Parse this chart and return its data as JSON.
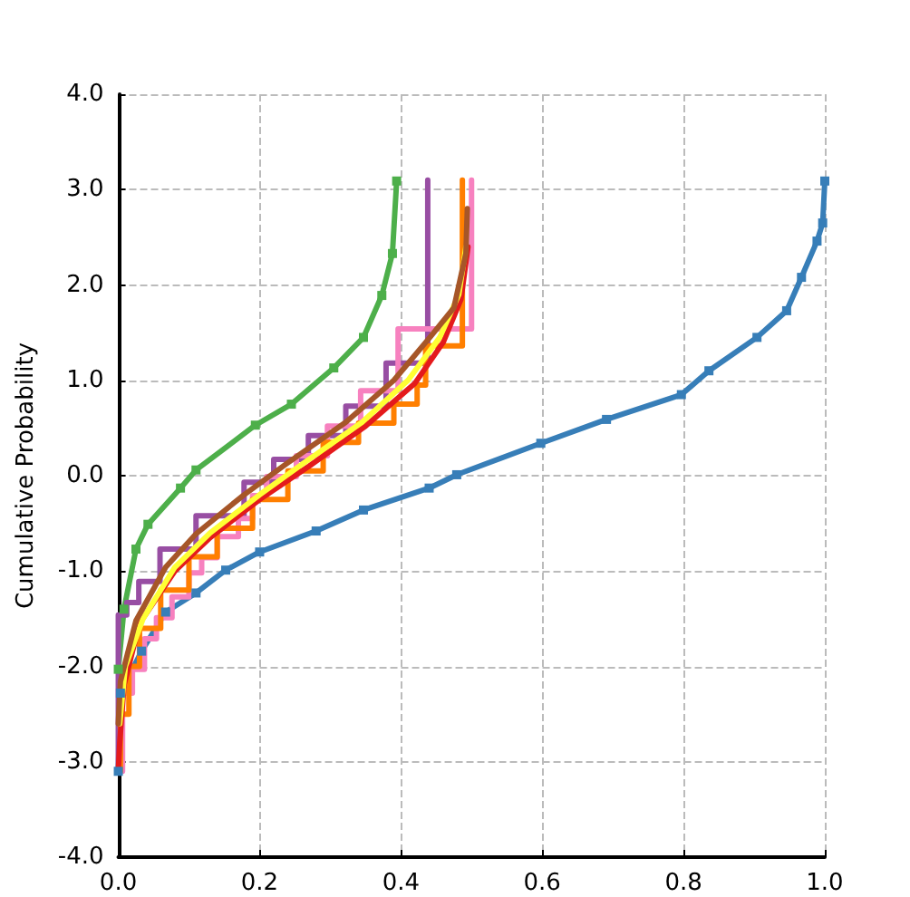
{
  "chart_data": {
    "type": "line",
    "ylabel": "Cumulative Probability",
    "xlim": [
      0,
      1
    ],
    "ylim": [
      -4,
      4
    ],
    "xticks": [
      {
        "value": 0,
        "label": "0.0"
      },
      {
        "value": 0.2,
        "label": "0.2"
      },
      {
        "value": 0.4,
        "label": "0.4"
      },
      {
        "value": 0.6,
        "label": "0.6"
      },
      {
        "value": 0.8,
        "label": "0.8"
      },
      {
        "value": 1,
        "label": "1.0"
      }
    ],
    "yticks": [
      {
        "value": -4,
        "label": "-4.0"
      },
      {
        "value": -3,
        "label": "-3.0"
      },
      {
        "value": -2,
        "label": "-2.0"
      },
      {
        "value": -1,
        "label": "-1.0"
      },
      {
        "value": 0,
        "label": "0.0"
      },
      {
        "value": 1,
        "label": "1.0"
      },
      {
        "value": 2,
        "label": "2.0"
      },
      {
        "value": 3,
        "label": "3.0"
      },
      {
        "value": 4,
        "label": "4.0"
      }
    ],
    "grid": true,
    "series": [
      {
        "marker": "square",
        "color": "#377eb8",
        "x": [
          0,
          0.003,
          0.033,
          0.067,
          0.11,
          0.152,
          0.2,
          0.28,
          0.347,
          0.44,
          0.479,
          0.598,
          0.691,
          0.797,
          0.836,
          0.904,
          0.946,
          0.967,
          0.989,
          0.997,
          1
        ],
        "values": [
          -3.1,
          -2.28,
          -1.84,
          -1.43,
          -1.23,
          -0.99,
          -0.8,
          -0.58,
          -0.36,
          -0.13,
          0.01,
          0.34,
          0.59,
          0.85,
          1.1,
          1.45,
          1.73,
          2.08,
          2.46,
          2.65,
          3.09
        ]
      },
      {
        "marker": "square",
        "color": "#4daf4a",
        "x": [
          0,
          0.008,
          0.025,
          0.042,
          0.088,
          0.11,
          0.194,
          0.245,
          0.305,
          0.347,
          0.373,
          0.388,
          0.394
        ],
        "values": [
          -2.03,
          -1.4,
          -0.77,
          -0.51,
          -0.13,
          0.06,
          0.53,
          0.75,
          1.13,
          1.45,
          1.89,
          2.33,
          3.09
        ]
      },
      {
        "type": "step",
        "color": "#984ea3",
        "x": [
          0,
          0,
          0.012,
          0.029,
          0.059,
          0.11,
          0.178,
          0.22,
          0.269,
          0.322,
          0.379,
          0.438
        ],
        "values": [
          -3.1,
          -1.46,
          -1.33,
          -1.11,
          -0.77,
          -0.42,
          -0.07,
          0.17,
          0.42,
          0.73,
          1.18,
          3.1
        ]
      },
      {
        "type": "step",
        "color": "#f781bf",
        "x": [
          0,
          0.006,
          0.02,
          0.037,
          0.054,
          0.076,
          0.1,
          0.118,
          0.14,
          0.17,
          0.19,
          0.21,
          0.252,
          0.296,
          0.343,
          0.396,
          0.5
        ],
        "values": [
          -3.1,
          -2.28,
          -2.03,
          -1.71,
          -1.49,
          -1.27,
          -1.02,
          -0.86,
          -0.64,
          -0.45,
          -0.21,
          -0.01,
          0.21,
          0.52,
          0.89,
          1.54,
          3.1
        ]
      },
      {
        "type": "step",
        "color": "#ff7f00",
        "x": [
          0,
          0.003,
          0.015,
          0.03,
          0.06,
          0.1,
          0.14,
          0.19,
          0.24,
          0.29,
          0.34,
          0.39,
          0.423,
          0.435,
          0.487
        ],
        "values": [
          -3.1,
          -2.5,
          -2,
          -1.6,
          -1.2,
          -0.85,
          -0.55,
          -0.25,
          0.05,
          0.35,
          0.55,
          0.75,
          0.95,
          1.36,
          3.1
        ]
      },
      {
        "color": "#e41a1c",
        "x": [
          0,
          0.002,
          0.008,
          0.03,
          0.08,
          0.13,
          0.2,
          0.27,
          0.35,
          0.42,
          0.46,
          0.485,
          0.495
        ],
        "values": [
          -3.1,
          -2.8,
          -2.2,
          -1.55,
          -1,
          -0.65,
          -0.25,
          0.1,
          0.52,
          0.97,
          1.4,
          1.85,
          2.4
        ]
      },
      {
        "color": "#ffff33",
        "x": [
          0.002,
          0.01,
          0.035,
          0.08,
          0.13,
          0.2,
          0.26,
          0.345,
          0.41,
          0.455,
          0.482,
          0.492
        ],
        "values": [
          -2.6,
          -2,
          -1.5,
          -0.96,
          -0.6,
          -0.2,
          0.12,
          0.56,
          1,
          1.45,
          1.9,
          2.4
        ]
      },
      {
        "color": "#a65628",
        "x": [
          0,
          0.003,
          0.025,
          0.067,
          0.11,
          0.178,
          0.237,
          0.322,
          0.39,
          0.441,
          0.475,
          0.492,
          0.494
        ],
        "values": [
          -2.6,
          -2.16,
          -1.52,
          -0.96,
          -0.61,
          -0.2,
          0.12,
          0.56,
          1,
          1.45,
          1.76,
          2.33,
          2.8
        ]
      }
    ]
  }
}
